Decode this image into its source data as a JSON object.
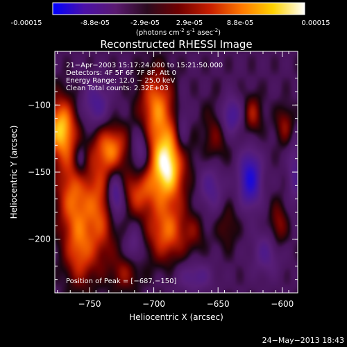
{
  "colorbar": {
    "ticks": [
      "-0.00015",
      "-8.8e-05",
      "-2.9e-05",
      "2.9e-05",
      "8.8e-05",
      "0.00015"
    ],
    "unit_main": "(photons cm",
    "unit_exp1": "-2",
    "unit_s": " s",
    "unit_exp2": "-1",
    "unit_asec": " asec",
    "unit_exp3": "-2",
    "unit_close": ")",
    "colors": [
      "#0000ff",
      "#4b10a8",
      "#5a1a70",
      "#2a0a1e",
      "#700000",
      "#c81e00",
      "#ff7800",
      "#ffd200",
      "#ffffff"
    ]
  },
  "chart_data": {
    "type": "heatmap",
    "title": "Reconstructed RHESSI Image",
    "xlabel": "Heliocentric X (arcsec)",
    "ylabel": "Heliocentric Y (arcsec)",
    "xlim": [
      -777,
      -588
    ],
    "ylim": [
      -240,
      -60
    ],
    "x_ticks": [
      -750,
      -700,
      -650,
      -600
    ],
    "y_ticks": [
      -100,
      -150,
      -200
    ],
    "x_tick_labels": [
      "−750",
      "−700",
      "−650",
      "−600"
    ],
    "y_tick_labels": [
      "−100",
      "−150",
      "−200"
    ],
    "info_lines": [
      "21−Apr−2003 15:17:24.000 to 15:21:50.000",
      "Detectors: 4F 5F 6F 7F 8F, Att 0",
      "Energy Range: 12.0 − 25.0 keV",
      "Clean     Total counts: 2.32E+03"
    ],
    "peak_label": "Position of Peak = [−687,−150]",
    "peak": [
      -687,
      -150
    ],
    "blobs": [
      {
        "x": -690,
        "y": -145,
        "w": 1.0,
        "sx": 10,
        "sy": 20
      },
      {
        "x": -698,
        "y": -100,
        "w": 0.6,
        "sx": 9,
        "sy": 18
      },
      {
        "x": -690,
        "y": -195,
        "w": 0.55,
        "sx": 11,
        "sy": 15
      },
      {
        "x": -712,
        "y": -165,
        "w": 0.45,
        "sx": 9,
        "sy": 12
      },
      {
        "x": -733,
        "y": -132,
        "w": 0.58,
        "sx": 9,
        "sy": 12
      },
      {
        "x": -742,
        "y": -178,
        "w": 0.52,
        "sx": 9,
        "sy": 28
      },
      {
        "x": -772,
        "y": -118,
        "w": 0.82,
        "sx": 8,
        "sy": 16
      },
      {
        "x": -763,
        "y": -168,
        "w": 0.55,
        "sx": 9,
        "sy": 22
      },
      {
        "x": -758,
        "y": -210,
        "w": 0.45,
        "sx": 8,
        "sy": 18
      },
      {
        "x": -722,
        "y": -225,
        "w": 0.3,
        "sx": 8,
        "sy": 10
      },
      {
        "x": -652,
        "y": -125,
        "w": 0.25,
        "sx": 7,
        "sy": 18
      },
      {
        "x": -668,
        "y": -195,
        "w": 0.18,
        "sx": 6,
        "sy": 10
      },
      {
        "x": -643,
        "y": -190,
        "w": 0.2,
        "sx": 6,
        "sy": 12
      },
      {
        "x": -623,
        "y": -107,
        "w": 0.35,
        "sx": 5,
        "sy": 10
      },
      {
        "x": -598,
        "y": -115,
        "w": 0.3,
        "sx": 5,
        "sy": 10
      },
      {
        "x": -603,
        "y": -190,
        "w": 0.32,
        "sx": 5,
        "sy": 12
      },
      {
        "x": -625,
        "y": -155,
        "w": -0.75,
        "sx": 6,
        "sy": 14
      },
      {
        "x": -730,
        "y": -168,
        "w": -0.6,
        "sx": 5,
        "sy": 12
      },
      {
        "x": -640,
        "y": -108,
        "w": -0.45,
        "sx": 6,
        "sy": 10
      },
      {
        "x": -710,
        "y": -135,
        "w": -0.4,
        "sx": 5,
        "sy": 12
      },
      {
        "x": -745,
        "y": -100,
        "w": -0.38,
        "sx": 8,
        "sy": 12
      },
      {
        "x": -655,
        "y": -160,
        "w": -0.35,
        "sx": 7,
        "sy": 14
      },
      {
        "x": -757,
        "y": -142,
        "w": -0.3,
        "sx": 4,
        "sy": 10
      },
      {
        "x": -678,
        "y": -120,
        "w": -0.3,
        "sx": 4,
        "sy": 16
      },
      {
        "x": -668,
        "y": -228,
        "w": -0.3,
        "sx": 10,
        "sy": 8
      },
      {
        "x": -612,
        "y": -210,
        "w": -0.3,
        "sx": 8,
        "sy": 12
      },
      {
        "x": -590,
        "y": -150,
        "w": -0.3,
        "sx": 4,
        "sy": 18
      },
      {
        "x": -715,
        "y": -205,
        "w": -0.28,
        "sx": 5,
        "sy": 10
      }
    ]
  },
  "footer": {
    "timestamp": "24−May−2013 18:43"
  }
}
